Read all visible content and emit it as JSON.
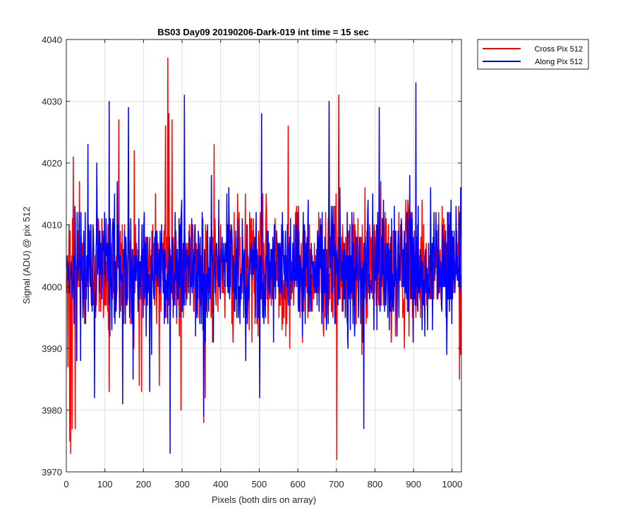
{
  "chart_data": {
    "type": "line",
    "title": "BS03 Day09 20190206-Dark-019 int time = 15 sec",
    "xlabel": "Pixels (both dirs on array)",
    "ylabel": "Signal (ADU) @ pix 512",
    "xlim": [
      0,
      1024
    ],
    "ylim": [
      3970,
      4040
    ],
    "x_ticks": [
      0,
      100,
      200,
      300,
      400,
      500,
      600,
      700,
      800,
      900,
      1000
    ],
    "y_ticks": [
      3970,
      3980,
      3990,
      4000,
      4010,
      4020,
      4030,
      4040
    ],
    "grid": true,
    "legend_position": "outside-top-right",
    "n_points": 1024,
    "series": [
      {
        "name": "Cross Pix 512",
        "color": "#ff0000",
        "baseline": 4003,
        "noise_sd": 5,
        "min": 3972,
        "max": 4037,
        "notable_points": [
          {
            "x": 0,
            "y": 3999
          },
          {
            "x": 3,
            "y": 3987
          },
          {
            "x": 6,
            "y": 4010
          },
          {
            "x": 8,
            "y": 3975
          },
          {
            "x": 10,
            "y": 3973
          },
          {
            "x": 14,
            "y": 3977
          },
          {
            "x": 17,
            "y": 4021
          },
          {
            "x": 22,
            "y": 3977
          },
          {
            "x": 33,
            "y": 4017
          },
          {
            "x": 110,
            "y": 3983
          },
          {
            "x": 135,
            "y": 4027
          },
          {
            "x": 175,
            "y": 4022
          },
          {
            "x": 188,
            "y": 3984
          },
          {
            "x": 240,
            "y": 3984
          },
          {
            "x": 256,
            "y": 4026
          },
          {
            "x": 262,
            "y": 4037
          },
          {
            "x": 265,
            "y": 4028
          },
          {
            "x": 273,
            "y": 4027
          },
          {
            "x": 296,
            "y": 3980
          },
          {
            "x": 355,
            "y": 3978
          },
          {
            "x": 382,
            "y": 4023
          },
          {
            "x": 574,
            "y": 4026
          },
          {
            "x": 700,
            "y": 3972
          },
          {
            "x": 705,
            "y": 4031
          },
          {
            "x": 1018,
            "y": 3985
          }
        ]
      },
      {
        "name": "Along Pix 512",
        "color": "#0000ff",
        "baseline": 4003,
        "noise_sd": 5,
        "min": 3973,
        "max": 4033,
        "notable_points": [
          {
            "x": 0,
            "y": 4005
          },
          {
            "x": 55,
            "y": 4023
          },
          {
            "x": 72,
            "y": 3982
          },
          {
            "x": 110,
            "y": 4030
          },
          {
            "x": 145,
            "y": 3981
          },
          {
            "x": 160,
            "y": 4029
          },
          {
            "x": 215,
            "y": 3983
          },
          {
            "x": 268,
            "y": 3973
          },
          {
            "x": 305,
            "y": 4031
          },
          {
            "x": 355,
            "y": 3979
          },
          {
            "x": 375,
            "y": 4018
          },
          {
            "x": 500,
            "y": 3982
          },
          {
            "x": 505,
            "y": 4028
          },
          {
            "x": 680,
            "y": 4030
          },
          {
            "x": 770,
            "y": 3977
          },
          {
            "x": 810,
            "y": 4029
          },
          {
            "x": 905,
            "y": 4033
          },
          {
            "x": 985,
            "y": 3989
          },
          {
            "x": 1023,
            "y": 4012
          }
        ]
      }
    ]
  }
}
